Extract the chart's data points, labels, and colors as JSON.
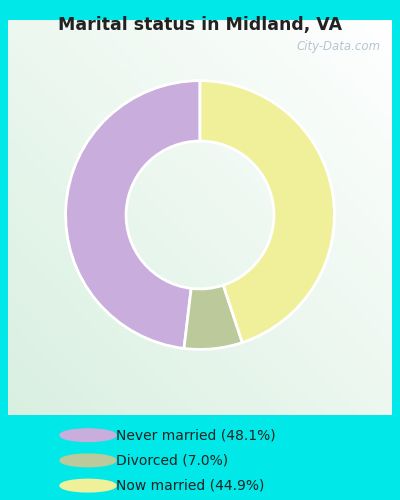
{
  "title": "Marital status in Midland, VA",
  "slices": [
    48.1,
    7.0,
    44.9
  ],
  "labels": [
    "Never married (48.1%)",
    "Divorced (7.0%)",
    "Now married (44.9%)"
  ],
  "colors": [
    "#c9aedd",
    "#bcc99a",
    "#f0f09a"
  ],
  "legend_colors": [
    "#c9aedd",
    "#bcc99a",
    "#f0f09a"
  ],
  "background_cyan": "#00e8e8",
  "background_inner": "#dff0e8",
  "donut_width": 0.45,
  "start_angle": 90,
  "watermark": "City-Data.com"
}
